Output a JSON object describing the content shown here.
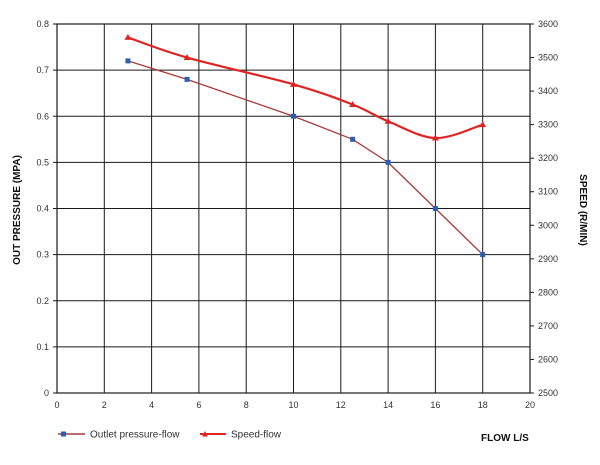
{
  "chart_data": {
    "type": "line",
    "title": "",
    "xlabel": "FLOW L/S",
    "y_left_label": "OUT PRESSURE (MPA)",
    "y_right_label": "SPEED (R/MIN)",
    "xlim": [
      0,
      20
    ],
    "x_ticks": [
      "0",
      "2",
      "4",
      "6",
      "8",
      "10",
      "12",
      "14",
      "16",
      "18",
      "20"
    ],
    "y_left_lim": [
      0,
      0.8
    ],
    "y_left_ticks": [
      "0",
      "0.1",
      "0.2",
      "0.3",
      "0.4",
      "0.5",
      "0.6",
      "0.7",
      "0.8"
    ],
    "y_right_lim": [
      2500,
      3600
    ],
    "y_right_ticks": [
      "2500",
      "2600",
      "2700",
      "2800",
      "2900",
      "3000",
      "3100",
      "3200",
      "3300",
      "3400",
      "3500",
      "3600"
    ],
    "grid": true,
    "legend_position": "bottom-left",
    "series": [
      {
        "name": "Outlet pressure-flow",
        "axis": "left",
        "color": "#a93a3a",
        "marker_color": "#2a5fb3",
        "marker": "square",
        "x": [
          3,
          5.5,
          10,
          12.5,
          14,
          16,
          18
        ],
        "y": [
          0.72,
          0.68,
          0.6,
          0.55,
          0.5,
          0.4,
          0.3
        ]
      },
      {
        "name": "Speed-flow",
        "axis": "right",
        "color": "#e02424",
        "marker_color": "#e02424",
        "marker": "triangle",
        "x": [
          3,
          5.5,
          10,
          12.5,
          14,
          16,
          18
        ],
        "y": [
          3560,
          3500,
          3420,
          3360,
          3310,
          3260,
          3300
        ]
      }
    ]
  }
}
